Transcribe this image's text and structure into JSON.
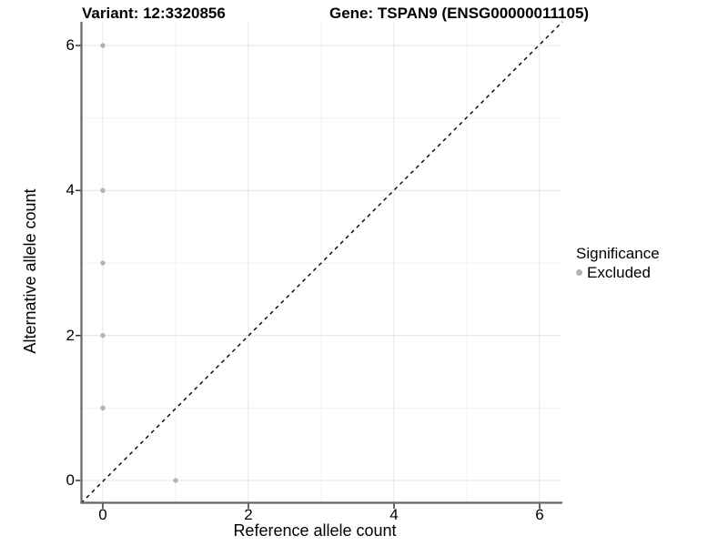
{
  "titles": {
    "variant": "Variant: 12:3320856",
    "gene": "Gene: TSPAN9 (ENSG00000011105)"
  },
  "axes": {
    "x_label": "Reference allele count",
    "y_label": "Alternative allele count",
    "x_ticks": [
      "0",
      "2",
      "4",
      "6"
    ],
    "y_ticks_top_to_bottom": [
      "6",
      "4",
      "2",
      "0"
    ]
  },
  "legend": {
    "title": "Significance",
    "items": [
      {
        "label": "Excluded",
        "color": "#b3b3b3"
      }
    ]
  },
  "colors": {
    "point": "#b3b3b3",
    "axis_line": "#666666",
    "tick_mark": "#333333",
    "grid_major": "#e4e4e4",
    "grid_minor": "#f0f0f0",
    "identity_line": "#000000",
    "background": "#ffffff",
    "text": "#000000"
  },
  "chart_data": {
    "type": "scatter",
    "title": "Variant: 12:3320856 | Gene: TSPAN9 (ENSG00000011105)",
    "xlabel": "Reference allele count",
    "ylabel": "Alternative allele count",
    "xlim": [
      -0.3,
      6.3
    ],
    "ylim": [
      -0.3,
      6.3
    ],
    "x_tick_values": [
      0,
      2,
      4,
      6
    ],
    "y_tick_values": [
      0,
      2,
      4,
      6
    ],
    "grid": "major gridlines at 0,2,4,6; minor gridlines at 1,3,5; white background",
    "legend_position": "right",
    "series": [
      {
        "name": "Excluded",
        "color": "#b3b3b3",
        "marker": "circle",
        "points": [
          [
            0,
            6
          ],
          [
            0,
            4
          ],
          [
            0,
            3
          ],
          [
            0,
            2
          ],
          [
            0,
            1
          ],
          [
            1,
            0
          ]
        ]
      }
    ],
    "reference_line": {
      "description": "identity line y = x from (-0.3,-0.3) to (6.3,6.3)",
      "style": "dashed",
      "color": "#000000"
    }
  }
}
